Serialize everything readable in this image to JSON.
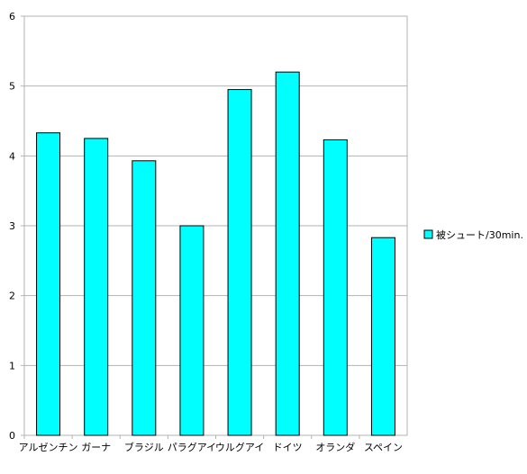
{
  "chart_data": {
    "type": "bar",
    "title": "",
    "xlabel": "",
    "ylabel": "",
    "categories": [
      "アルゼンチン",
      "ガーナ",
      "ブラジル",
      "パラグアイ",
      "ウルグアイ",
      "ドイツ",
      "オランダ",
      "スペイン"
    ],
    "series": [
      {
        "name": "被シュート/30min.",
        "color": "#00ffff",
        "values": [
          4.33,
          4.25,
          3.93,
          3.0,
          4.95,
          5.2,
          4.23,
          2.83
        ]
      }
    ],
    "ylim": [
      0,
      6
    ],
    "yticks": [
      "0",
      "1",
      "2",
      "3",
      "4",
      "5",
      "6"
    ],
    "grid": true,
    "legend_position": "right"
  }
}
